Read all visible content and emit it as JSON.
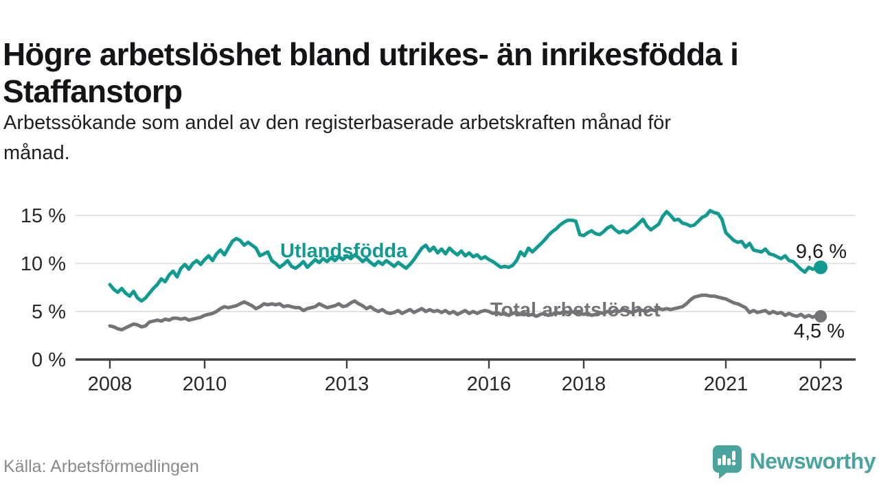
{
  "header": {
    "title_lines": [
      "Högre arbetslöshet bland utrikes- än inrikesfödda i",
      "Staffanstorp"
    ],
    "subtitle_lines": [
      "Arbetssökande som andel av den registerbaserade arbetskraften månad för",
      "månad."
    ]
  },
  "footer": {
    "source": "Källa: Arbetsförmedlingen",
    "brand": "Newsworthy"
  },
  "colors": {
    "series_foreign": "#119a90",
    "series_total": "#747478",
    "brand_teal": "#4aa49e",
    "grid": "#dadada",
    "axis": "#3d4043",
    "axis_text": "#26292c",
    "title_text": "#121417",
    "muted_text": "#8a8a8a"
  },
  "chart_data": {
    "type": "line",
    "x_unit": "month",
    "x_start": "2008-01",
    "x_end": "2023-01",
    "ylim": [
      0,
      16
    ],
    "grid": true,
    "legend_position": "inline-labels",
    "y_ticks": [
      {
        "value": 0,
        "label": "0 %"
      },
      {
        "value": 5,
        "label": "5 %"
      },
      {
        "value": 10,
        "label": "10 %"
      },
      {
        "value": 15,
        "label": "15 %"
      }
    ],
    "x_ticks": [
      {
        "year": 2008,
        "label": "2008"
      },
      {
        "year": 2010,
        "label": "2010"
      },
      {
        "year": 2013,
        "label": "2013"
      },
      {
        "year": 2016,
        "label": "2016"
      },
      {
        "year": 2018,
        "label": "2018"
      },
      {
        "year": 2021,
        "label": "2021"
      },
      {
        "year": 2023,
        "label": "2023"
      }
    ],
    "series": [
      {
        "name": "Utlandsfödda",
        "color": "#119a90",
        "end_value_label": "9,6 %",
        "end_value": 9.6,
        "values": [
          7.8,
          7.3,
          7.0,
          7.4,
          6.9,
          6.6,
          7.1,
          6.4,
          6.1,
          6.4,
          6.9,
          7.4,
          7.8,
          8.4,
          8.1,
          8.8,
          9.2,
          8.6,
          9.5,
          9.9,
          9.4,
          10.0,
          10.3,
          9.9,
          10.4,
          10.8,
          10.3,
          11.0,
          11.4,
          10.9,
          11.6,
          12.3,
          12.6,
          12.4,
          11.9,
          12.2,
          11.9,
          11.6,
          10.8,
          11.0,
          11.2,
          10.3,
          10.0,
          9.6,
          9.9,
          10.3,
          9.7,
          9.5,
          9.8,
          10.2,
          9.6,
          10.0,
          10.4,
          10.1,
          10.5,
          10.2,
          10.6,
          10.3,
          10.7,
          10.4,
          10.8,
          10.5,
          10.9,
          10.6,
          10.2,
          10.5,
          10.1,
          9.8,
          10.2,
          9.9,
          10.3,
          10.0,
          9.7,
          10.1,
          9.8,
          9.5,
          9.9,
          10.4,
          11.0,
          11.6,
          11.9,
          11.3,
          11.7,
          11.1,
          11.5,
          11.0,
          11.6,
          11.2,
          10.9,
          11.3,
          10.8,
          11.1,
          10.7,
          10.9,
          10.5,
          10.7,
          10.4,
          10.2,
          9.9,
          9.6,
          9.7,
          9.6,
          9.8,
          10.3,
          11.2,
          10.8,
          11.6,
          11.2,
          11.6,
          12.0,
          12.4,
          12.9,
          13.3,
          13.6,
          14.0,
          14.3,
          14.5,
          14.5,
          14.4,
          13.0,
          12.9,
          13.2,
          13.4,
          13.1,
          13.0,
          13.3,
          13.7,
          13.9,
          13.5,
          13.2,
          13.4,
          13.2,
          13.5,
          13.8,
          14.2,
          14.6,
          13.9,
          13.5,
          13.8,
          14.1,
          14.9,
          15.4,
          15.0,
          14.5,
          14.6,
          14.2,
          14.1,
          13.9,
          14.0,
          14.4,
          14.8,
          15.0,
          15.5,
          15.3,
          15.2,
          14.6,
          13.2,
          12.8,
          12.4,
          12.2,
          12.3,
          11.7,
          12.1,
          11.4,
          11.3,
          11.2,
          11.5,
          11.0,
          10.9,
          10.7,
          10.5,
          10.8,
          10.3,
          10.2,
          9.8,
          9.4,
          9.1,
          9.6,
          9.4,
          9.5,
          9.6
        ]
      },
      {
        "name": "Total arbetslöshet",
        "color": "#747478",
        "end_value_label": "4,5 %",
        "end_value": 4.5,
        "values": [
          3.5,
          3.4,
          3.2,
          3.1,
          3.3,
          3.5,
          3.7,
          3.6,
          3.4,
          3.5,
          3.9,
          4.0,
          4.1,
          4.0,
          4.2,
          4.1,
          4.3,
          4.3,
          4.2,
          4.3,
          4.1,
          4.2,
          4.3,
          4.4,
          4.6,
          4.7,
          4.8,
          5.0,
          5.3,
          5.5,
          5.4,
          5.5,
          5.6,
          5.8,
          6.0,
          5.8,
          5.6,
          5.3,
          5.5,
          5.8,
          5.7,
          5.8,
          5.7,
          5.8,
          5.5,
          5.6,
          5.5,
          5.4,
          5.4,
          5.1,
          5.3,
          5.4,
          5.5,
          5.8,
          5.6,
          5.4,
          5.5,
          5.6,
          5.8,
          5.5,
          5.6,
          5.9,
          6.1,
          5.8,
          5.6,
          5.3,
          5.5,
          5.2,
          5.0,
          5.2,
          4.9,
          4.8,
          4.9,
          5.1,
          4.8,
          5.0,
          5.2,
          4.9,
          5.1,
          5.3,
          5.0,
          5.2,
          5.0,
          5.1,
          4.9,
          5.1,
          4.8,
          5.0,
          4.7,
          4.9,
          5.1,
          4.8,
          5.0,
          4.8,
          5.0,
          5.1,
          5.0,
          4.8,
          4.9,
          4.7,
          4.8,
          4.6,
          4.8,
          4.9,
          4.7,
          4.8,
          4.6,
          4.7,
          4.5,
          4.7,
          4.8,
          4.6,
          4.7,
          4.9,
          4.8,
          5.0,
          4.9,
          5.0,
          4.8,
          4.9,
          4.7,
          4.8,
          4.6,
          4.7,
          4.9,
          4.8,
          5.0,
          4.9,
          5.1,
          5.0,
          5.2,
          5.1,
          4.9,
          5.0,
          5.2,
          5.1,
          5.0,
          5.2,
          5.1,
          5.3,
          5.2,
          5.3,
          5.2,
          5.3,
          5.4,
          5.5,
          5.8,
          6.2,
          6.5,
          6.6,
          6.7,
          6.7,
          6.6,
          6.6,
          6.5,
          6.4,
          6.3,
          6.1,
          5.9,
          5.8,
          5.6,
          5.4,
          4.9,
          5.1,
          4.9,
          5.0,
          5.1,
          4.8,
          5.0,
          4.8,
          4.9,
          4.6,
          4.8,
          4.6,
          4.5,
          4.7,
          4.4,
          4.6,
          4.4,
          4.6,
          4.5
        ]
      }
    ]
  }
}
